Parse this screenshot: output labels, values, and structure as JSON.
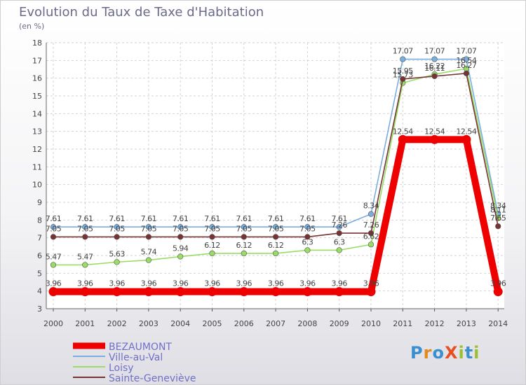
{
  "title": "Evolution du Taux de Taxe d'Habitation",
  "unit": "(en %)",
  "logo": "ProXiti",
  "chart_data": {
    "type": "line",
    "x": [
      "2000",
      "2001",
      "2002",
      "2003",
      "2004",
      "2005",
      "2006",
      "2007",
      "2008",
      "2009",
      "2010",
      "2011",
      "2012",
      "2013",
      "2014"
    ],
    "ylim": [
      3,
      18
    ],
    "yticks": [
      3,
      4,
      5,
      6,
      7,
      8,
      9,
      10,
      11,
      12,
      13,
      14,
      15,
      16,
      17,
      18
    ],
    "grid": true,
    "legend_position": "bottom-left",
    "series": [
      {
        "name": "BEZAUMONT",
        "color": "#ee0000",
        "values": [
          3.96,
          3.96,
          3.96,
          3.96,
          3.96,
          3.96,
          3.96,
          3.96,
          3.96,
          3.96,
          3.96,
          12.54,
          12.54,
          12.54,
          3.96
        ],
        "labels": [
          "3.96",
          "3.96",
          "3.96",
          "3.96",
          "3.96",
          "3.96",
          "3.96",
          "3.96",
          "3.96",
          "3.96",
          "3.96",
          "12.54",
          "12.54",
          "12.54",
          "3.96"
        ]
      },
      {
        "name": "Ville-au-Val",
        "color": "#7aaede",
        "values": [
          7.61,
          7.61,
          7.61,
          7.61,
          7.61,
          7.61,
          7.61,
          7.61,
          7.61,
          7.61,
          8.34,
          17.07,
          17.07,
          17.07,
          8.34
        ],
        "labels": [
          "7.61",
          "7.61",
          "7.61",
          "7.61",
          "7.61",
          "7.61",
          "7.61",
          "7.61",
          "7.61",
          "7.61",
          "8.34",
          "17.07",
          "17.07",
          "17.07",
          "8.34"
        ]
      },
      {
        "name": "Loisy",
        "color": "#99dd66",
        "values": [
          5.47,
          5.47,
          5.63,
          5.74,
          5.94,
          6.12,
          6.12,
          6.12,
          6.3,
          6.3,
          6.62,
          15.73,
          16.22,
          16.54,
          8.11
        ],
        "labels": [
          "5.47",
          "5.47",
          "5.63",
          "5.74",
          "5.94",
          "6.12",
          "6.12",
          "6.12",
          "6.3",
          "6.3",
          "6.62",
          "15.73",
          "16.22",
          "16.54",
          "8.11"
        ]
      },
      {
        "name": "Sainte-Geneviève",
        "color": "#773333",
        "values": [
          7.05,
          7.05,
          7.05,
          7.05,
          7.05,
          7.05,
          7.05,
          7.05,
          7.05,
          7.26,
          7.26,
          15.95,
          16.11,
          16.27,
          7.65
        ],
        "labels": [
          "7.05",
          "7.05",
          "7.05",
          "7.05",
          "7.05",
          "7.05",
          "7.05",
          "7.05",
          "7.05",
          "7.26",
          "7.26",
          "15.95",
          "16.11",
          "16.27",
          "7.65"
        ]
      }
    ]
  }
}
